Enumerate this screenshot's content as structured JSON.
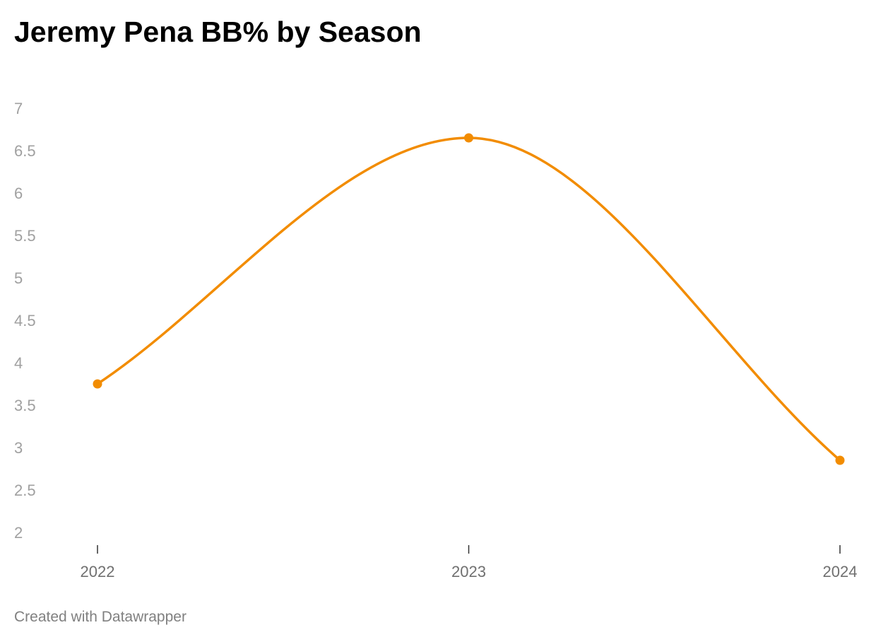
{
  "title": "Jeremy Pena BB% by Season",
  "footer": {
    "credit": "Created with Datawrapper"
  },
  "chart_data": {
    "type": "line",
    "title": "Jeremy Pena BB% by Season",
    "xlabel": "",
    "ylabel": "",
    "categories": [
      "2022",
      "2023",
      "2024"
    ],
    "series": [
      {
        "values": [
          3.75,
          6.65,
          2.85
        ],
        "color": "#f28c00"
      }
    ],
    "ylim": [
      2,
      7
    ],
    "y_ticks": [
      "7",
      "6.5",
      "6",
      "5.5",
      "5",
      "4.5",
      "4",
      "3.5",
      "3",
      "2.5",
      "2"
    ],
    "grid": false,
    "curve": "smooth",
    "markers": true,
    "legend": "none"
  }
}
